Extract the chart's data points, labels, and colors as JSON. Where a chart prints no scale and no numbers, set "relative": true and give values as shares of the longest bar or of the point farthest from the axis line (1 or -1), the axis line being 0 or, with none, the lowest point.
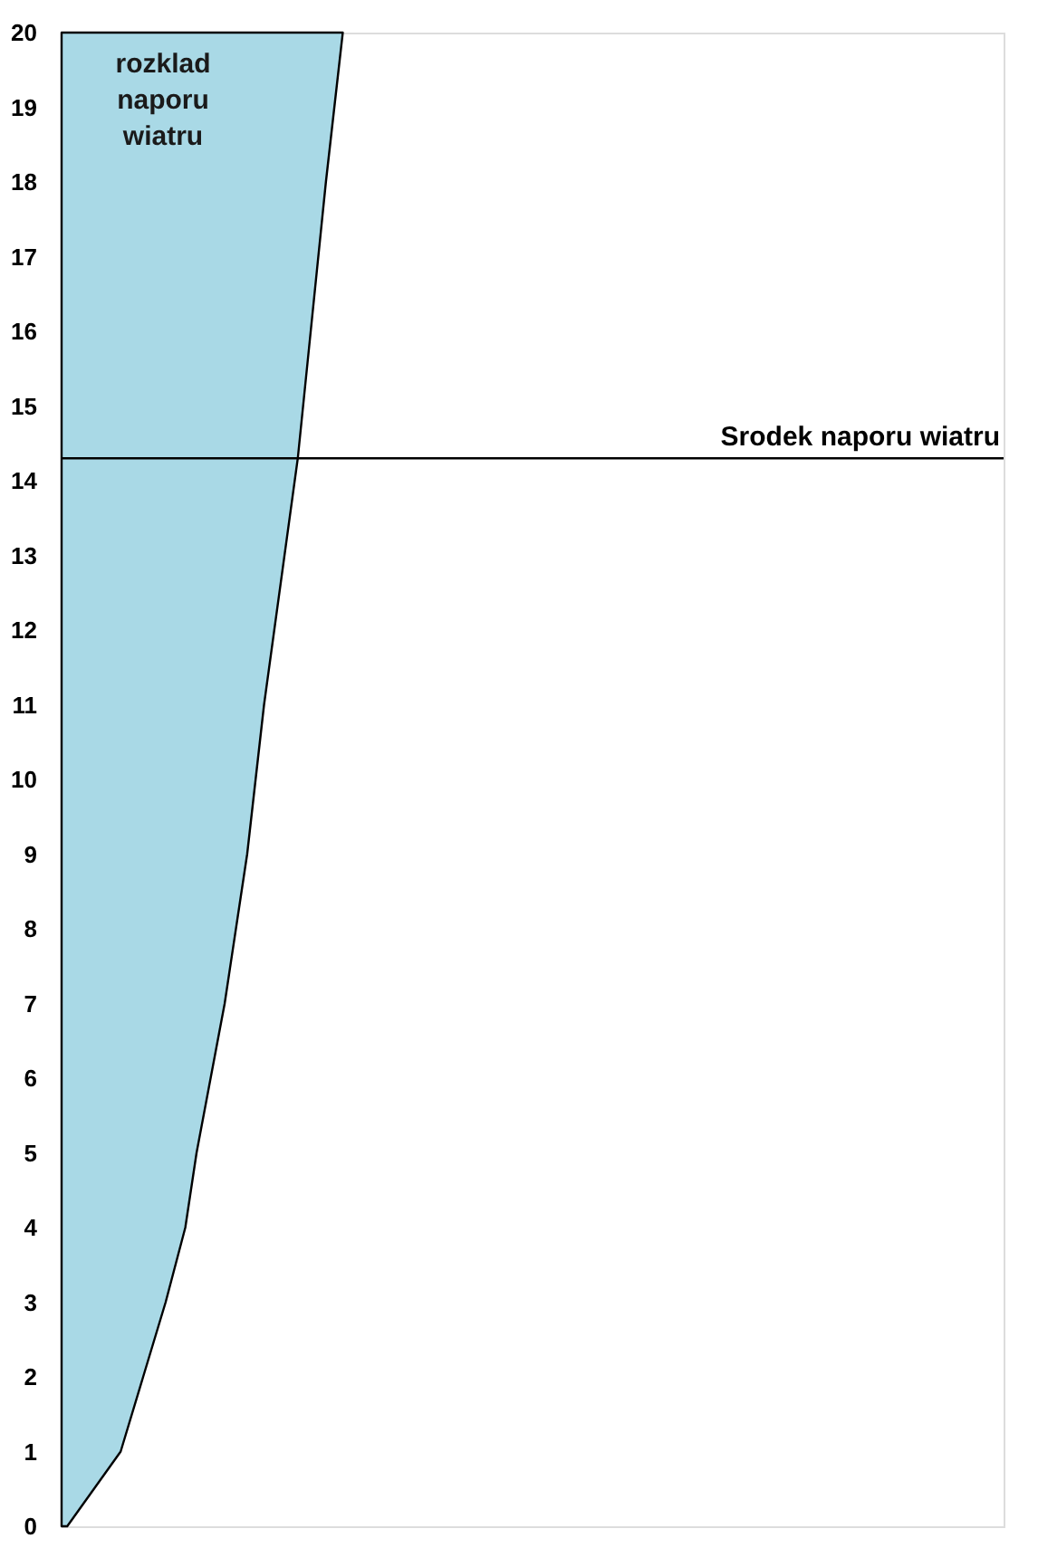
{
  "chart_data": {
    "type": "area",
    "orientation": "horizontal",
    "relative": true,
    "x": [
      0,
      1,
      2,
      3,
      4,
      5,
      7,
      9,
      10,
      11,
      14.3,
      18,
      20
    ],
    "series": [
      {
        "color": "#a9d9e6",
        "values": [
          0.02,
          0.21,
          0.29,
          0.37,
          0.44,
          0.48,
          0.58,
          0.66,
          0.69,
          0.72,
          0.84,
          0.94,
          1
        ]
      }
    ],
    "ylim": [
      0,
      20
    ],
    "yticks": [
      0,
      1,
      2,
      3,
      4,
      5,
      6,
      7,
      8,
      9,
      10,
      11,
      12,
      13,
      14,
      15,
      16,
      17,
      18,
      19,
      20
    ],
    "ref_lines": [
      {
        "axis": "y",
        "value": 14.3,
        "label": "Srodek naporu wiatru",
        "color": "#000000"
      }
    ],
    "annotations": [
      "rozklad naporu wiatru"
    ],
    "grid": false,
    "tick_labels": "y"
  }
}
